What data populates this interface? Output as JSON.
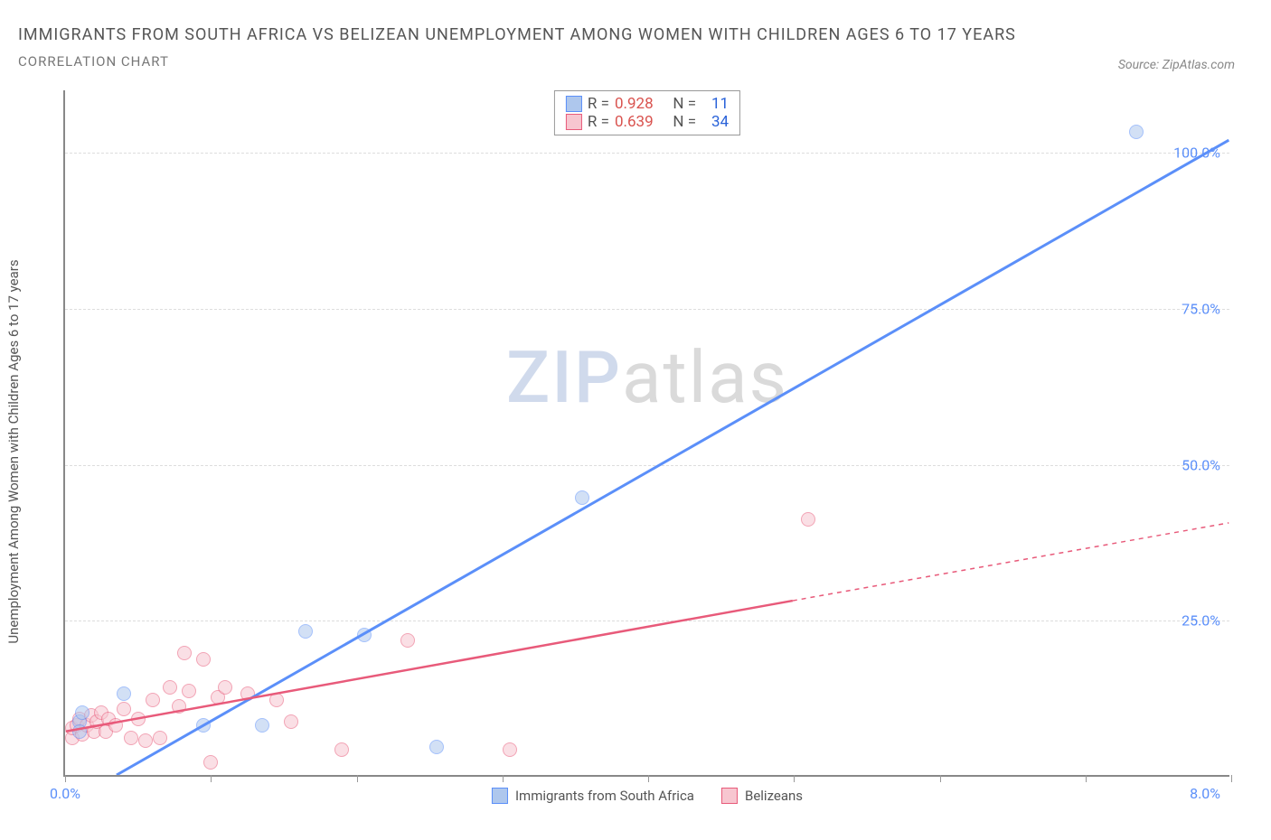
{
  "title": "IMMIGRANTS FROM SOUTH AFRICA VS BELIZEAN UNEMPLOYMENT AMONG WOMEN WITH CHILDREN AGES 6 TO 17 YEARS",
  "subtitle": "CORRELATION CHART",
  "source": "Source: ZipAtlas.com",
  "watermark_a": "ZIP",
  "watermark_b": "atlas",
  "chart": {
    "type": "scatter",
    "xlim": [
      0,
      8
    ],
    "ylim": [
      0,
      110
    ],
    "x_ticks": [
      0,
      1,
      2,
      3,
      4,
      5,
      6,
      7,
      8
    ],
    "x_tick_labels": {
      "0": "0.0%",
      "8": "8.0%"
    },
    "y_ticks": [
      25,
      50,
      75,
      100
    ],
    "y_tick_labels": [
      "25.0%",
      "50.0%",
      "75.0%",
      "100.0%"
    ],
    "y_axis_label": "Unemployment Among Women with Children Ages 6 to 17 years",
    "background_color": "#ffffff",
    "grid_color": "#dddddd",
    "axis_color": "#888888",
    "tick_label_color": "#5b8ff9",
    "series": [
      {
        "name": "Immigrants from South Africa",
        "color_fill": "#aec7ed",
        "color_stroke": "#5b8ff9",
        "marker_radius": 8,
        "fill_opacity": 0.55,
        "R": "0.928",
        "N": "11",
        "trend": {
          "x1": 0.35,
          "y1": 0,
          "x2": 8.0,
          "y2": 102,
          "width": 3,
          "dash": "none",
          "extend_dash": false
        },
        "points": [
          {
            "x": 0.1,
            "y": 8.5
          },
          {
            "x": 0.1,
            "y": 7.0
          },
          {
            "x": 0.12,
            "y": 10.0
          },
          {
            "x": 0.4,
            "y": 13.0
          },
          {
            "x": 0.95,
            "y": 8.0
          },
          {
            "x": 1.35,
            "y": 8.0
          },
          {
            "x": 1.65,
            "y": 23.0
          },
          {
            "x": 2.05,
            "y": 22.5
          },
          {
            "x": 2.55,
            "y": 4.5
          },
          {
            "x": 3.55,
            "y": 44.5
          },
          {
            "x": 7.35,
            "y": 103.0
          }
        ]
      },
      {
        "name": "Belizeans",
        "color_fill": "#f7c6d0",
        "color_stroke": "#e85a7a",
        "marker_radius": 8,
        "fill_opacity": 0.55,
        "R": "0.639",
        "N": "34",
        "trend": {
          "x1": 0.0,
          "y1": 7.0,
          "x2": 5.0,
          "y2": 28.0,
          "width": 2.5,
          "dash": "none",
          "extend_dash": true,
          "ext_x1": 5.0,
          "ext_y1": 28.0,
          "ext_x2": 8.0,
          "ext_y2": 40.5
        },
        "points": [
          {
            "x": 0.05,
            "y": 6.0
          },
          {
            "x": 0.05,
            "y": 7.5
          },
          {
            "x": 0.08,
            "y": 8.0
          },
          {
            "x": 0.1,
            "y": 9.0
          },
          {
            "x": 0.12,
            "y": 6.5
          },
          {
            "x": 0.15,
            "y": 8.0
          },
          {
            "x": 0.18,
            "y": 9.5
          },
          {
            "x": 0.2,
            "y": 7.0
          },
          {
            "x": 0.22,
            "y": 8.5
          },
          {
            "x": 0.25,
            "y": 10.0
          },
          {
            "x": 0.28,
            "y": 7.0
          },
          {
            "x": 0.3,
            "y": 9.0
          },
          {
            "x": 0.35,
            "y": 8.0
          },
          {
            "x": 0.4,
            "y": 10.5
          },
          {
            "x": 0.45,
            "y": 6.0
          },
          {
            "x": 0.5,
            "y": 9.0
          },
          {
            "x": 0.55,
            "y": 5.5
          },
          {
            "x": 0.6,
            "y": 12.0
          },
          {
            "x": 0.65,
            "y": 6.0
          },
          {
            "x": 0.72,
            "y": 14.0
          },
          {
            "x": 0.78,
            "y": 11.0
          },
          {
            "x": 0.82,
            "y": 19.5
          },
          {
            "x": 0.85,
            "y": 13.5
          },
          {
            "x": 0.95,
            "y": 18.5
          },
          {
            "x": 1.0,
            "y": 2.0
          },
          {
            "x": 1.05,
            "y": 12.5
          },
          {
            "x": 1.1,
            "y": 14.0
          },
          {
            "x": 1.25,
            "y": 13.0
          },
          {
            "x": 1.45,
            "y": 12.0
          },
          {
            "x": 1.55,
            "y": 8.5
          },
          {
            "x": 1.9,
            "y": 4.0
          },
          {
            "x": 2.35,
            "y": 21.5
          },
          {
            "x": 3.05,
            "y": 4.0
          },
          {
            "x": 5.1,
            "y": 41.0
          }
        ]
      }
    ],
    "legend_bottom": [
      {
        "label": "Immigrants from South Africa",
        "fill": "#aec7ed",
        "stroke": "#5b8ff9"
      },
      {
        "label": "Belizeans",
        "fill": "#f7c6d0",
        "stroke": "#e85a7a"
      }
    ]
  }
}
